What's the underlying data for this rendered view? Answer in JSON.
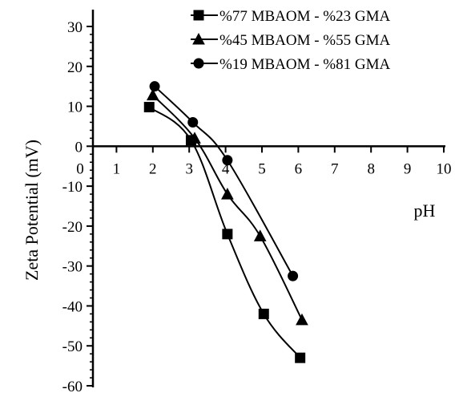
{
  "chart_data": {
    "type": "line",
    "title": "",
    "xlabel": "pH",
    "ylabel": "Zeta Potential  (mV)",
    "xlim": [
      0,
      10
    ],
    "ylim": [
      -60,
      30
    ],
    "x_ticks": [
      "0",
      "1",
      "2",
      "3",
      "4",
      "5",
      "6",
      "7",
      "8",
      "9",
      "10"
    ],
    "y_ticks": [
      "30",
      "20",
      "10",
      "0",
      "-10",
      "-20",
      "-30",
      "-40",
      "-50",
      "-60"
    ],
    "grid": false,
    "legend_position": "top-right",
    "series": [
      {
        "name": "%77 MBAOM - %23 GMA",
        "marker": "square",
        "color": "#000000",
        "x": [
          1.9,
          3.05,
          4.05,
          5.05,
          6.05
        ],
        "y": [
          9.8,
          1.5,
          -22,
          -42,
          -53
        ]
      },
      {
        "name": "%45 MBAOM - %55 GMA",
        "marker": "triangle",
        "color": "#000000",
        "x": [
          2.0,
          3.15,
          4.05,
          4.95,
          6.1
        ],
        "y": [
          12.8,
          2.0,
          -12,
          -22.5,
          -43.5
        ]
      },
      {
        "name": "%19 MBAOM - %81 GMA",
        "marker": "circle",
        "color": "#000000",
        "x": [
          2.05,
          3.1,
          4.05,
          5.85
        ],
        "y": [
          15,
          6,
          -3.5,
          -32.5
        ]
      }
    ]
  }
}
